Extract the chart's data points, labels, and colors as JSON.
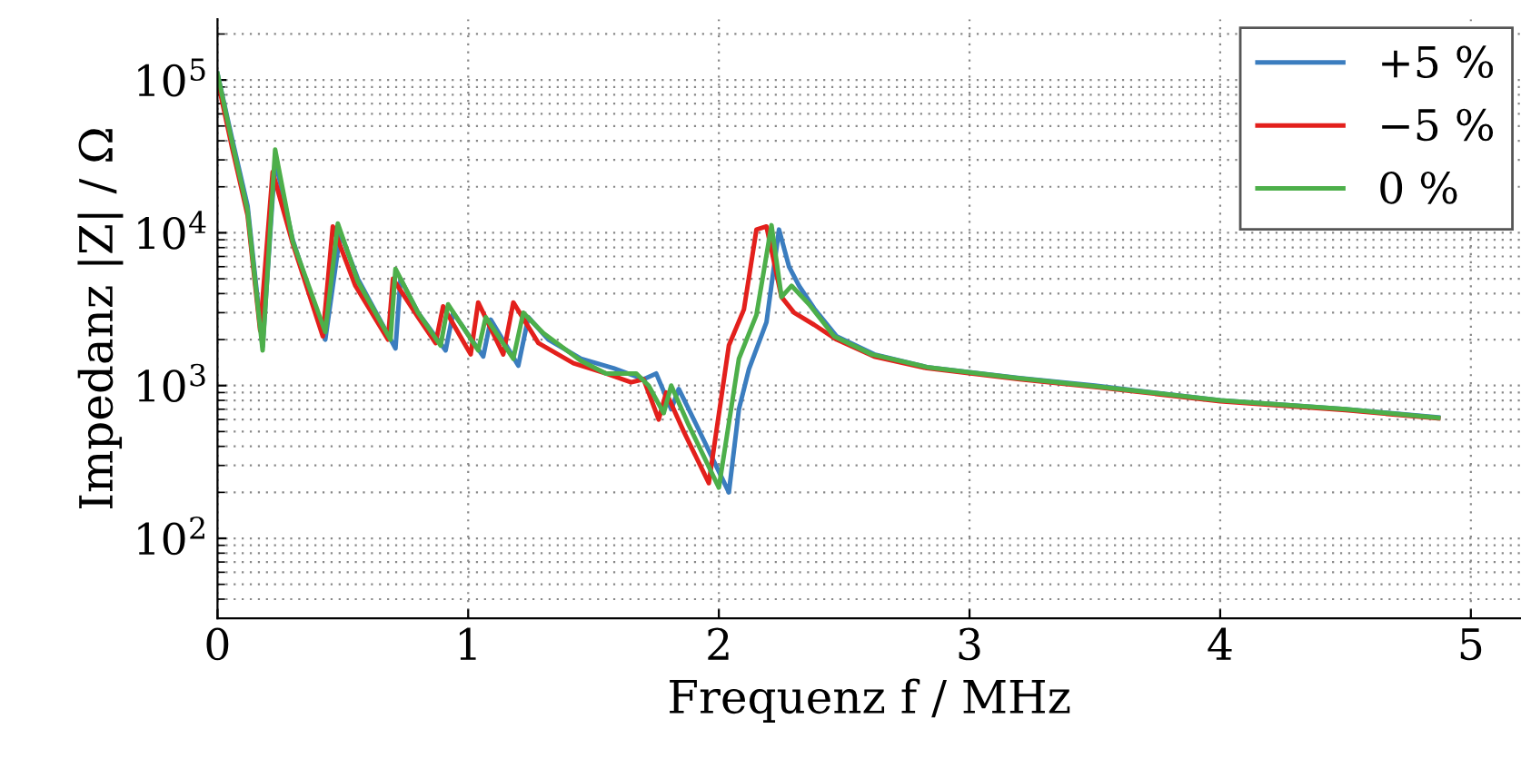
{
  "chart_data": {
    "type": "line",
    "xlabel": "Frequenz f / MHz",
    "ylabel": "Impedanz |Z| / Ω",
    "log": "y",
    "grid": true,
    "legend": "top right",
    "line_style": "solid",
    "marker": "none",
    "xlim": [
      0,
      5.2
    ],
    "xticks": [
      0,
      1,
      2,
      3,
      4,
      5
    ],
    "ylim": [
      30,
      250000
    ],
    "yticks": [
      {
        "value": 100,
        "label": "10$^{2}$"
      },
      {
        "value": 1000,
        "label": "10$^{3}$"
      },
      {
        "value": 10000,
        "label": "10$^{4}$"
      },
      {
        "value": 100000,
        "label": "10$^{5}$"
      }
    ],
    "series": [
      {
        "name": "+5 %",
        "color": "#3b7dbf",
        "x": [
          0,
          0.06,
          0.12,
          0.18,
          0.23,
          0.3,
          0.43,
          0.49,
          0.56,
          0.71,
          0.73,
          0.8,
          0.91,
          0.94,
          1.06,
          1.09,
          1.2,
          1.24,
          1.32,
          1.45,
          1.58,
          1.7,
          1.75,
          1.81,
          1.84,
          1.9,
          2.04,
          2.08,
          2.12,
          2.19,
          2.24,
          2.28,
          2.32,
          2.38,
          2.47,
          2.62,
          2.83,
          3.2,
          3.5,
          4.0,
          4.5,
          4.87
        ],
        "values": [
          110000,
          40000,
          15000,
          1800,
          30000,
          9000,
          2000,
          10000,
          5000,
          1750,
          5000,
          3000,
          1700,
          3000,
          1550,
          2700,
          1350,
          2800,
          2000,
          1500,
          1300,
          1100,
          1200,
          700,
          950,
          600,
          200,
          700,
          1280,
          2600,
          10500,
          6000,
          4500,
          3200,
          2100,
          1600,
          1320,
          1120,
          1000,
          800,
          700,
          620
        ]
      },
      {
        "name": "−5 %",
        "color": "#e3201c",
        "x": [
          0,
          0.06,
          0.12,
          0.17,
          0.22,
          0.3,
          0.42,
          0.46,
          0.55,
          0.68,
          0.7,
          0.8,
          0.87,
          0.9,
          1.01,
          1.04,
          1.14,
          1.18,
          1.28,
          1.42,
          1.55,
          1.65,
          1.7,
          1.76,
          1.79,
          1.86,
          1.96,
          2.04,
          2.1,
          2.15,
          2.19,
          2.25,
          2.3,
          2.38,
          2.47,
          2.62,
          2.83,
          3.2,
          3.5,
          4.0,
          4.5,
          4.87
        ],
        "values": [
          100000,
          35000,
          13000,
          2300,
          25000,
          8500,
          2100,
          11000,
          4500,
          2000,
          5000,
          2800,
          1900,
          3300,
          1600,
          3500,
          1600,
          3500,
          1900,
          1400,
          1200,
          1050,
          1100,
          600,
          900,
          500,
          230,
          1830,
          3150,
          10500,
          11000,
          3800,
          3000,
          2500,
          2000,
          1550,
          1300,
          1100,
          980,
          790,
          690,
          610
        ]
      },
      {
        "name": "0 %",
        "color": "#4daf4a",
        "x": [
          0,
          0.06,
          0.12,
          0.18,
          0.23,
          0.3,
          0.43,
          0.48,
          0.56,
          0.69,
          0.71,
          0.8,
          0.89,
          0.92,
          1.04,
          1.07,
          1.18,
          1.22,
          1.3,
          1.45,
          1.55,
          1.67,
          1.72,
          1.78,
          1.81,
          1.88,
          2.0,
          2.08,
          2.15,
          2.21,
          2.25,
          2.29,
          2.36,
          2.46,
          2.61,
          2.83,
          3.19,
          3.5,
          4.0,
          4.5,
          4.87
        ],
        "values": [
          110000,
          38000,
          14000,
          1700,
          35000,
          8800,
          2240,
          11500,
          4800,
          2000,
          5800,
          3000,
          1830,
          3400,
          1700,
          2800,
          1500,
          3000,
          2200,
          1450,
          1200,
          1200,
          1000,
          660,
          1000,
          550,
          215,
          1500,
          2900,
          11200,
          3800,
          4500,
          3400,
          2100,
          1600,
          1320,
          1120,
          990,
          800,
          700,
          615
        ]
      }
    ]
  }
}
